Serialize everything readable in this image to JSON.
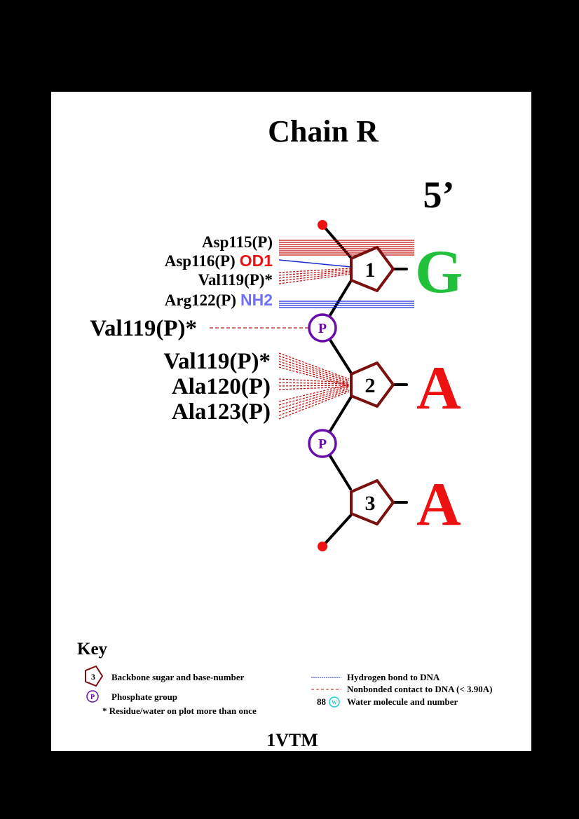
{
  "title": "Chain R",
  "strand_end_label": "5’",
  "nucleotides": [
    {
      "number": "1",
      "base": "G",
      "base_color": "#22c13c"
    },
    {
      "number": "2",
      "base": "A",
      "base_color": "#ee1111"
    },
    {
      "number": "3",
      "base": "A",
      "base_color": "#ee1111"
    }
  ],
  "phosphates": [
    "P",
    "P"
  ],
  "contacts": {
    "asp115": {
      "residue": "Asp115(P)",
      "atom": ""
    },
    "asp116": {
      "residue": "Asp116(P)",
      "atom": "OD1"
    },
    "val119_a": {
      "residue": "Val119(P)*",
      "atom": ""
    },
    "arg122": {
      "residue": "Arg122(P)",
      "atom": "NH2"
    },
    "val119_b": {
      "residue": "Val119(P)*",
      "atom": ""
    },
    "val119_c": {
      "residue": "Val119(P)*",
      "atom": ""
    },
    "ala120": {
      "residue": "Ala120(P)",
      "atom": ""
    },
    "ala123": {
      "residue": "Ala123(P)",
      "atom": ""
    }
  },
  "key": {
    "heading": "Key",
    "sugar_example": "3",
    "sugar_label": "Backbone sugar and base-number",
    "phosphate_example": "P",
    "phosphate_label": "Phosphate group",
    "repeat_note": "* Residue/water on plot more than once",
    "hbond_label": "Hydrogen bond to DNA",
    "nonbonded_label": "Nonbonded contact to DNA (< 3.90A)",
    "water_number": "88",
    "water_symbol": "W",
    "water_label": "Water molecule and number"
  },
  "pdb_id": "1VTM",
  "colors": {
    "sugar": "#7a1010",
    "phosphate": "#6a0dad",
    "nonbonded": "#c01010",
    "hbond": "#1a2bd6",
    "acceptor_atom": "#ee1111",
    "donor_atom": "#6f6fff",
    "endpoint": "#ee1111",
    "water": "#22cfd6"
  }
}
